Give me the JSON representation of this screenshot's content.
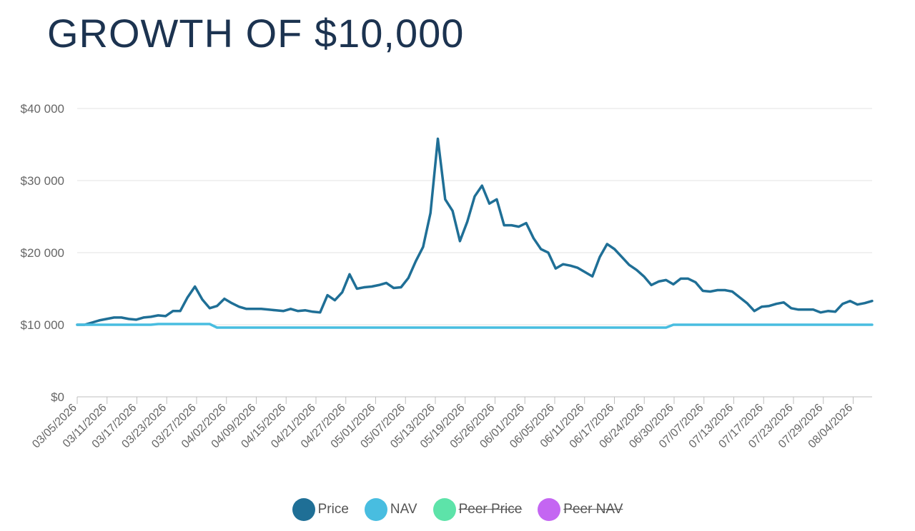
{
  "title": "GROWTH OF $10,000",
  "chart_data": {
    "type": "line",
    "ylim": [
      0,
      40000
    ],
    "yticks": [
      0,
      10000,
      20000,
      30000,
      40000
    ],
    "ytick_labels": [
      "$0",
      "$10 000",
      "$20 000",
      "$30 000",
      "$40 000"
    ],
    "xtick_labels": [
      "03/05/2026",
      "03/11/2026",
      "03/17/2026",
      "03/23/2026",
      "03/27/2026",
      "04/02/2026",
      "04/09/2026",
      "04/15/2026",
      "04/21/2026",
      "04/27/2026",
      "05/01/2026",
      "05/07/2026",
      "05/13/2026",
      "05/19/2026",
      "05/26/2026",
      "06/01/2026",
      "06/05/2026",
      "06/11/2026",
      "06/17/2026",
      "06/24/2026",
      "06/30/2026",
      "07/07/2026",
      "07/13/2026",
      "07/17/2026",
      "07/23/2026",
      "07/29/2026",
      "08/04/2026"
    ],
    "grid": true,
    "legend_position": "bottom",
    "series": [
      {
        "name": "Price",
        "color": "#1f6f96",
        "visible": true,
        "values": [
          10000,
          10000,
          10300,
          10600,
          10800,
          11000,
          11000,
          10800,
          10700,
          11000,
          11100,
          11300,
          11200,
          11900,
          11900,
          13800,
          15300,
          13500,
          12300,
          12600,
          13600,
          13000,
          12500,
          12200,
          12200,
          12200,
          12100,
          12000,
          11900,
          12200,
          11900,
          12000,
          11800,
          11700,
          14100,
          13400,
          14500,
          17000,
          15000,
          15200,
          15300,
          15500,
          15800,
          15100,
          15200,
          16500,
          18800,
          20800,
          25500,
          35800,
          27400,
          25800,
          21600,
          24300,
          27800,
          29300,
          26800,
          27400,
          23800,
          23800,
          23600,
          24100,
          22000,
          20500,
          20000,
          17800,
          18400,
          18200,
          17900,
          17300,
          16700,
          19400,
          21200,
          20500,
          19400,
          18300,
          17600,
          16700,
          15500,
          16000,
          16200,
          15600,
          16400,
          16400,
          15900,
          14700,
          14600,
          14800,
          14800,
          14600,
          13800,
          13000,
          11900,
          12500,
          12600,
          12900,
          13100,
          12300,
          12100,
          12100,
          12100,
          11700,
          11900,
          11800,
          12900,
          13300,
          12800,
          13000,
          13300
        ]
      },
      {
        "name": "NAV",
        "color": "#48bde0",
        "visible": true,
        "values": [
          10000,
          10000,
          10000,
          10000,
          10000,
          10000,
          10000,
          10000,
          10000,
          10000,
          10000,
          10100,
          10100,
          10100,
          10100,
          10100,
          10100,
          10100,
          10100,
          9600,
          9600,
          9600,
          9600,
          9600,
          9600,
          9600,
          9600,
          9600,
          9600,
          9600,
          9600,
          9600,
          9600,
          9600,
          9600,
          9600,
          9600,
          9600,
          9600,
          9600,
          9600,
          9600,
          9600,
          9600,
          9600,
          9600,
          9600,
          9600,
          9600,
          9600,
          9600,
          9600,
          9600,
          9600,
          9600,
          9600,
          9600,
          9600,
          9600,
          9600,
          9600,
          9600,
          9600,
          9600,
          9600,
          9600,
          9600,
          9600,
          9600,
          9600,
          9600,
          9600,
          9600,
          9600,
          9600,
          9600,
          9600,
          9600,
          9600,
          9600,
          9600,
          10000,
          10000,
          10000,
          10000,
          10000,
          10000,
          10000,
          10000,
          10000,
          10000,
          10000,
          10000,
          10000,
          10000,
          10000,
          10000,
          10000,
          10000,
          10000,
          10000,
          10000,
          10000,
          10000,
          10000,
          10000,
          10000,
          10000,
          10000
        ]
      },
      {
        "name": "Peer Price",
        "color": "#5de3a9",
        "visible": false,
        "values": []
      },
      {
        "name": "Peer NAV",
        "color": "#c466f2",
        "visible": false,
        "values": []
      }
    ]
  },
  "legend": [
    {
      "label": "Price",
      "color": "#1f6f96",
      "hidden": false
    },
    {
      "label": "NAV",
      "color": "#48bde0",
      "hidden": false
    },
    {
      "label": "Peer Price",
      "color": "#5de3a9",
      "hidden": true
    },
    {
      "label": "Peer NAV",
      "color": "#c466f2",
      "hidden": true
    }
  ]
}
